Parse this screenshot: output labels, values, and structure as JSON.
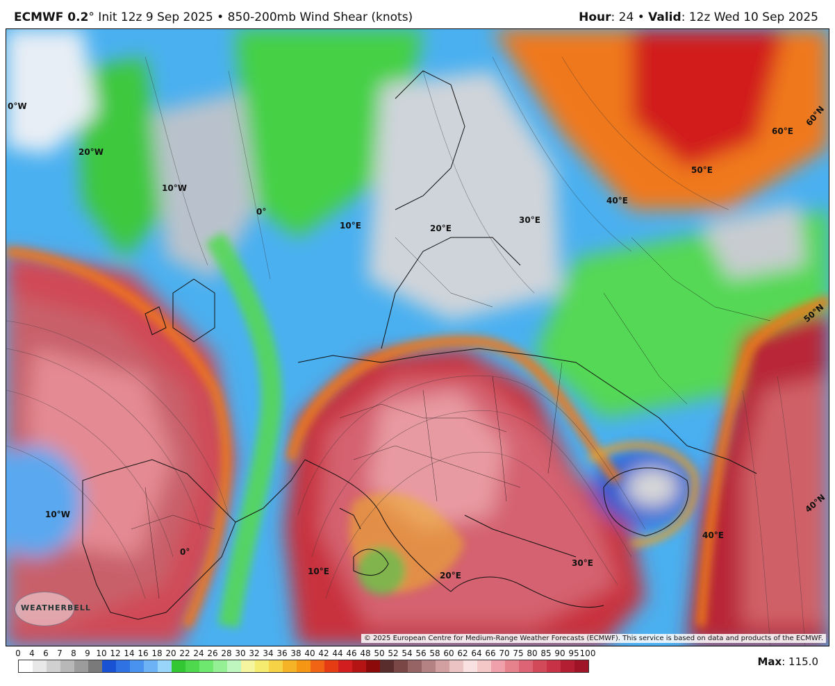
{
  "header": {
    "model": "ECMWF 0.2",
    "degree_symbol": "°",
    "init": " Init 12z 9 Sep 2025",
    "separator": " • ",
    "field": "850-200mb Wind Shear (knots)",
    "hour_label": "Hour",
    "hour_value": ": 24",
    "valid_label": "Valid",
    "valid_value": ": 12z Wed 10 Sep 2025"
  },
  "map": {
    "grid_labels": [
      "0°W",
      "20°W",
      "10°W",
      "0°",
      "10°E",
      "20°E",
      "30°E",
      "40°E",
      "50°E",
      "60°E",
      "60°N",
      "50°N",
      "40°N",
      "40°E",
      "10°W",
      "0°",
      "10°E",
      "20°E",
      "30°E"
    ],
    "copyright": "© 2025 European Centre for Medium-Range Weather Forecasts (ECMWF). This service is based on data and products of the ECMWF.",
    "logo_text": "WEATHERBELL",
    "logo_icon": "globe-logo-icon"
  },
  "colorbar": {
    "ticks": [
      "0",
      "4",
      "6",
      "7",
      "8",
      "9",
      "10",
      "12",
      "14",
      "16",
      "18",
      "20",
      "22",
      "24",
      "26",
      "28",
      "30",
      "32",
      "34",
      "36",
      "38",
      "40",
      "42",
      "44",
      "46",
      "48",
      "50",
      "52",
      "54",
      "56",
      "58",
      "60",
      "62",
      "64",
      "66",
      "70",
      "75",
      "80",
      "85",
      "90",
      "95",
      "100"
    ],
    "colors": [
      "#ffffff",
      "#e8e8e8",
      "#d0d0d0",
      "#b8b8b8",
      "#9c9c9c",
      "#7a7a7a",
      "#1a52d4",
      "#2f72e4",
      "#4a92f0",
      "#6cb2f5",
      "#99d4fa",
      "#33c833",
      "#4ed84e",
      "#6ee86e",
      "#95f095",
      "#bff5bf",
      "#f5f5a0",
      "#f5eb6e",
      "#f5d246",
      "#f5b428",
      "#f59614",
      "#f06414",
      "#e63c14",
      "#d21e1e",
      "#b41414",
      "#8c0a0a",
      "#5a2d2d",
      "#7a4646",
      "#966464",
      "#b48282",
      "#d2a0a0",
      "#ebc3c3",
      "#fae1e1",
      "#f5c8c8",
      "#f0a0aa",
      "#e6828c",
      "#dc6474",
      "#d24a5a",
      "#c83246",
      "#b41e32",
      "#a01428"
    ],
    "max_label": "Max",
    "max_value": ": 115.0"
  }
}
